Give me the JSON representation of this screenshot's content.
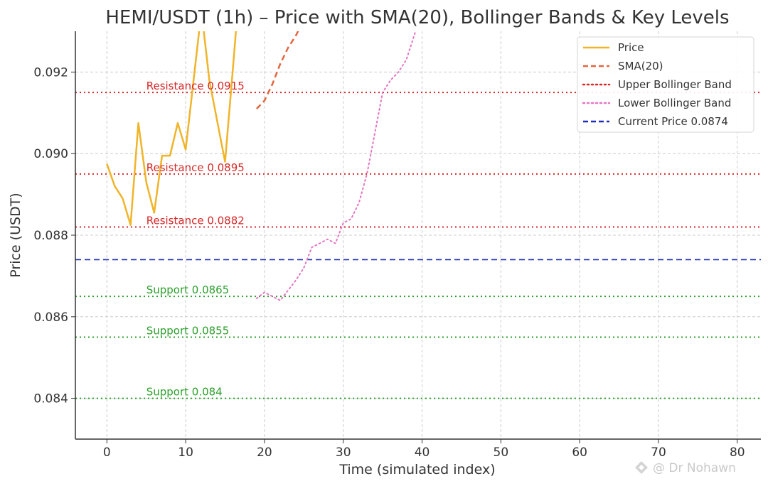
{
  "chart_data": {
    "type": "line",
    "title": "HEMI/USDT (1h) – Price with SMA(20), Bollinger Bands & Key Levels",
    "xlabel": "Time (simulated index)",
    "ylabel": "Price (USDT)",
    "xlim": [
      -4,
      83
    ],
    "ylim": [
      0.083,
      0.093
    ],
    "xticks": [
      0,
      10,
      20,
      30,
      40,
      50,
      60,
      70,
      80
    ],
    "yticks": [
      0.084,
      0.086,
      0.088,
      0.09,
      0.092
    ],
    "ytick_labels": [
      "0.084",
      "0.086",
      "0.088",
      "0.090",
      "0.092"
    ],
    "grid": true,
    "legend_position": "top-right",
    "series": [
      {
        "name": "Price",
        "color": "#f0b429",
        "style": "solid",
        "x": [
          0,
          1,
          2,
          3,
          4,
          5,
          6,
          7,
          8,
          9,
          10,
          11,
          12,
          13,
          14,
          15,
          16,
          17
        ],
        "y": [
          0.08975,
          0.0892,
          0.0889,
          0.08825,
          0.09075,
          0.0893,
          0.08855,
          0.08995,
          0.08995,
          0.09075,
          0.0901,
          0.0918,
          0.0935,
          0.0918,
          0.0908,
          0.0898,
          0.0921,
          0.0945
        ]
      },
      {
        "name": "SMA(20)",
        "color": "#e1673f",
        "style": "dashed",
        "x": [
          19,
          20,
          21,
          22,
          23,
          24,
          25
        ],
        "y": [
          0.0911,
          0.0913,
          0.0917,
          0.0922,
          0.0926,
          0.0929,
          0.0933
        ]
      },
      {
        "name": "Upper Bollinger Band",
        "color": "#d62728",
        "style": "dotted",
        "x": [],
        "y": []
      },
      {
        "name": "Lower Bollinger Band",
        "color": "#e377c2",
        "style": "dotted",
        "x": [
          19,
          20,
          21,
          22,
          23,
          24,
          25,
          26,
          27,
          28,
          29,
          30,
          31,
          32,
          33,
          34,
          35,
          36,
          37,
          38,
          39,
          40
        ],
        "y": [
          0.08645,
          0.0866,
          0.0865,
          0.0864,
          0.08665,
          0.0869,
          0.0872,
          0.0877,
          0.0878,
          0.0879,
          0.0878,
          0.0883,
          0.0884,
          0.0888,
          0.0895,
          0.0905,
          0.0915,
          0.0918,
          0.092,
          0.0923,
          0.0929,
          0.0935
        ]
      }
    ],
    "levels": [
      {
        "kind": "resistance",
        "value": 0.0915,
        "label": "Resistance 0.0915",
        "color": "#d62728",
        "style": "dotted"
      },
      {
        "kind": "resistance",
        "value": 0.0895,
        "label": "Resistance 0.0895",
        "color": "#d62728",
        "style": "dotted"
      },
      {
        "kind": "resistance",
        "value": 0.0882,
        "label": "Resistance 0.0882",
        "color": "#d62728",
        "style": "dotted"
      },
      {
        "kind": "current",
        "value": 0.0874,
        "label": "",
        "color": "#1f2fb5",
        "style": "dashed"
      },
      {
        "kind": "support",
        "value": 0.0865,
        "label": "Support 0.0865",
        "color": "#2ca02c",
        "style": "dotted"
      },
      {
        "kind": "support",
        "value": 0.0855,
        "label": "Support 0.0855",
        "color": "#2ca02c",
        "style": "dotted"
      },
      {
        "kind": "support",
        "value": 0.084,
        "label": "Support 0.084",
        "color": "#2ca02c",
        "style": "dotted"
      }
    ],
    "level_label_x": 5,
    "legend": [
      {
        "label": "Price",
        "color": "#f0b429",
        "style": "solid"
      },
      {
        "label": "SMA(20)",
        "color": "#e1673f",
        "style": "dashed"
      },
      {
        "label": "Upper Bollinger Band",
        "color": "#d62728",
        "style": "dotted"
      },
      {
        "label": "Lower Bollinger Band",
        "color": "#e377c2",
        "style": "dotted"
      },
      {
        "label": "Current Price 0.0874",
        "color": "#1f2fb5",
        "style": "dashed"
      }
    ]
  },
  "watermark": "@ Dr Nohawn"
}
